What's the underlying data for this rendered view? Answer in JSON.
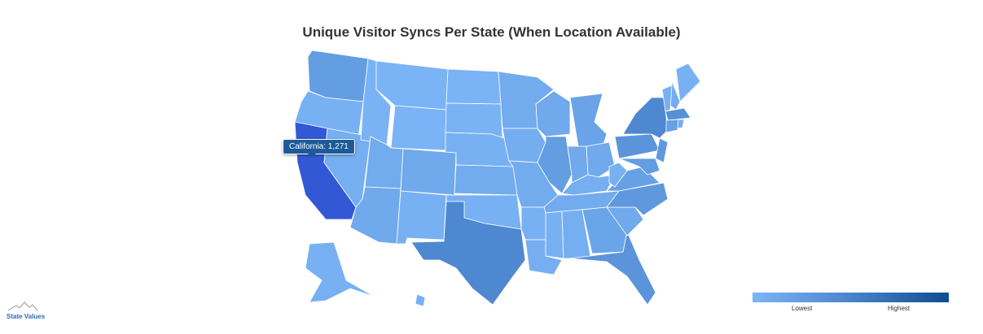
{
  "title": "Unique Visitor Syncs Per State (When Location Available)",
  "tooltip": {
    "text": "California: 1,271"
  },
  "legend": {
    "low": "Lowest",
    "high": "Highest",
    "colors": [
      "#7cb5f7",
      "#4a84cc",
      "#0f4c90"
    ]
  },
  "footer": {
    "label": "State Values"
  },
  "chart_data": {
    "type": "choropleth",
    "title": "Unique Visitor Syncs Per State (When Location Available)",
    "scale": "relative (Lowest to Highest)",
    "highlighted": {
      "state": "California",
      "value": 1271
    },
    "states": [
      {
        "id": "WA",
        "name": "Washington",
        "level": 0.3
      },
      {
        "id": "OR",
        "name": "Oregon",
        "level": 0.05
      },
      {
        "id": "CA",
        "name": "California",
        "level": 1.0
      },
      {
        "id": "NV",
        "name": "Nevada",
        "level": 0.08
      },
      {
        "id": "ID",
        "name": "Idaho",
        "level": 0.03
      },
      {
        "id": "MT",
        "name": "Montana",
        "level": 0.02
      },
      {
        "id": "WY",
        "name": "Wyoming",
        "level": 0.02
      },
      {
        "id": "UT",
        "name": "Utah",
        "level": 0.12
      },
      {
        "id": "AZ",
        "name": "Arizona",
        "level": 0.15
      },
      {
        "id": "CO",
        "name": "Colorado",
        "level": 0.15
      },
      {
        "id": "NM",
        "name": "New Mexico",
        "level": 0.06
      },
      {
        "id": "ND",
        "name": "North Dakota",
        "level": 0.02
      },
      {
        "id": "SD",
        "name": "South Dakota",
        "level": 0.03
      },
      {
        "id": "NE",
        "name": "Nebraska",
        "level": 0.05
      },
      {
        "id": "KS",
        "name": "Kansas",
        "level": 0.12
      },
      {
        "id": "OK",
        "name": "Oklahoma",
        "level": 0.06
      },
      {
        "id": "TX",
        "name": "Texas",
        "level": 0.55
      },
      {
        "id": "MN",
        "name": "Minnesota",
        "level": 0.12
      },
      {
        "id": "IA",
        "name": "Iowa",
        "level": 0.1
      },
      {
        "id": "MO",
        "name": "Missouri",
        "level": 0.12
      },
      {
        "id": "AR",
        "name": "Arkansas",
        "level": 0.05
      },
      {
        "id": "LA",
        "name": "Louisiana",
        "level": 0.08
      },
      {
        "id": "WI",
        "name": "Wisconsin",
        "level": 0.15
      },
      {
        "id": "IL",
        "name": "Illinois",
        "level": 0.3
      },
      {
        "id": "MI",
        "name": "Michigan",
        "level": 0.22
      },
      {
        "id": "IN",
        "name": "Indiana",
        "level": 0.15
      },
      {
        "id": "OH",
        "name": "Ohio",
        "level": 0.15
      },
      {
        "id": "KY",
        "name": "Kentucky",
        "level": 0.08
      },
      {
        "id": "TN",
        "name": "Tennessee",
        "level": 0.12
      },
      {
        "id": "MS",
        "name": "Mississippi",
        "level": 0.05
      },
      {
        "id": "AL",
        "name": "Alabama",
        "level": 0.08
      },
      {
        "id": "GA",
        "name": "Georgia",
        "level": 0.2
      },
      {
        "id": "FL",
        "name": "Florida",
        "level": 0.4
      },
      {
        "id": "SC",
        "name": "South Carolina",
        "level": 0.15
      },
      {
        "id": "NC",
        "name": "North Carolina",
        "level": 0.35
      },
      {
        "id": "VA",
        "name": "Virginia",
        "level": 0.25
      },
      {
        "id": "WV",
        "name": "West Virginia",
        "level": 0.05
      },
      {
        "id": "PA",
        "name": "Pennsylvania",
        "level": 0.4
      },
      {
        "id": "NY",
        "name": "New York",
        "level": 0.55
      },
      {
        "id": "NJ",
        "name": "New Jersey",
        "level": 0.35
      },
      {
        "id": "MD",
        "name": "Maryland",
        "level": 0.3
      },
      {
        "id": "ME",
        "name": "Maine",
        "level": 0.05
      },
      {
        "id": "NH",
        "name": "New Hampshire",
        "level": 0.1
      },
      {
        "id": "VT",
        "name": "Vermont",
        "level": 0.05
      },
      {
        "id": "MA",
        "name": "Massachusetts",
        "level": 0.45
      },
      {
        "id": "CT",
        "name": "Connecticut",
        "level": 0.25
      },
      {
        "id": "RI",
        "name": "Rhode Island",
        "level": 0.1
      },
      {
        "id": "AK",
        "name": "Alaska",
        "level": 0.05
      },
      {
        "id": "HI",
        "name": "Hawaii",
        "level": 0.05
      }
    ]
  }
}
